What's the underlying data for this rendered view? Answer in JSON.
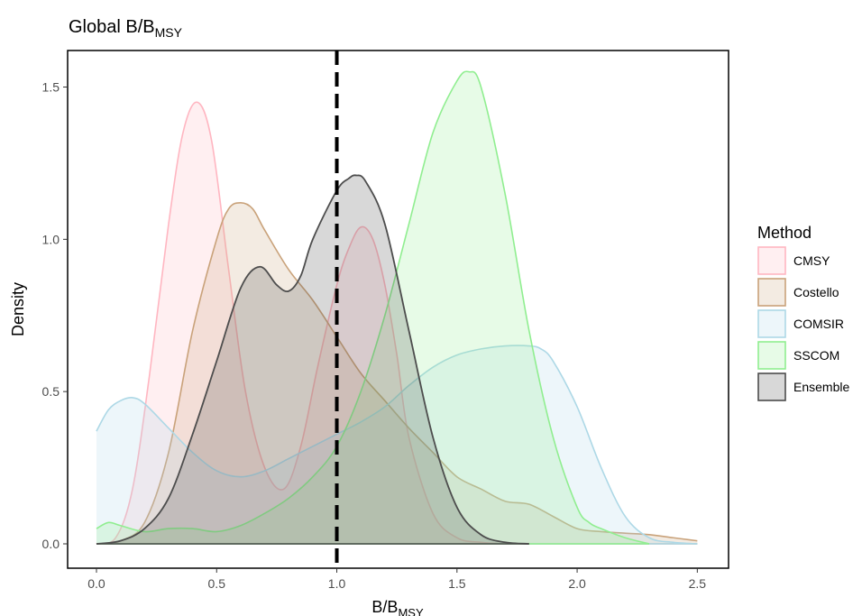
{
  "chart_data": {
    "type": "area",
    "title": {
      "main": "Global B",
      "slash": "/",
      "base": "B",
      "sub": "MSY"
    },
    "xlabel": {
      "base": "B",
      "slash": "/",
      "base2": "B",
      "sub": "MSY"
    },
    "ylabel": "Density",
    "xlim": [
      -0.12,
      2.63
    ],
    "ylim": [
      -0.08,
      1.62
    ],
    "x_ticks": [
      "0.0",
      "0.5",
      "1.0",
      "1.5",
      "2.0",
      "2.5"
    ],
    "y_ticks": [
      "0.0",
      "0.5",
      "1.0",
      "1.5"
    ],
    "reference_line": {
      "x": 1.0,
      "style": "dashed"
    },
    "grid": false,
    "legend": {
      "title": "Method",
      "position": "right"
    },
    "series": [
      {
        "name": "CMSY",
        "color": "#ffb6c1",
        "x": [
          0.0,
          0.08,
          0.15,
          0.22,
          0.3,
          0.36,
          0.42,
          0.48,
          0.55,
          0.62,
          0.7,
          0.78,
          0.85,
          0.92,
          1.0,
          1.05,
          1.1,
          1.15,
          1.2,
          1.25,
          1.3,
          1.4,
          1.5,
          1.6,
          1.7,
          1.8
        ],
        "values": [
          0.0,
          0.02,
          0.18,
          0.55,
          1.05,
          1.35,
          1.45,
          1.32,
          0.9,
          0.5,
          0.25,
          0.18,
          0.32,
          0.58,
          0.85,
          0.97,
          1.04,
          1.0,
          0.85,
          0.62,
          0.35,
          0.1,
          0.02,
          0.005,
          0.0,
          0.0
        ]
      },
      {
        "name": "Costello",
        "color": "#c9a27a",
        "x": [
          0.0,
          0.1,
          0.2,
          0.3,
          0.4,
          0.5,
          0.55,
          0.6,
          0.65,
          0.7,
          0.8,
          0.9,
          1.0,
          1.1,
          1.2,
          1.3,
          1.4,
          1.5,
          1.6,
          1.7,
          1.8,
          1.9,
          2.0,
          2.1,
          2.2,
          2.3,
          2.4,
          2.5
        ],
        "values": [
          0.0,
          0.01,
          0.07,
          0.3,
          0.7,
          1.0,
          1.1,
          1.12,
          1.1,
          1.03,
          0.9,
          0.8,
          0.68,
          0.56,
          0.47,
          0.38,
          0.3,
          0.22,
          0.18,
          0.14,
          0.13,
          0.09,
          0.05,
          0.04,
          0.035,
          0.03,
          0.02,
          0.01
        ]
      },
      {
        "name": "COMSIR",
        "color": "#add8e6",
        "x": [
          0.0,
          0.05,
          0.1,
          0.15,
          0.2,
          0.3,
          0.4,
          0.5,
          0.6,
          0.7,
          0.8,
          0.9,
          1.0,
          1.1,
          1.2,
          1.3,
          1.4,
          1.5,
          1.6,
          1.7,
          1.8,
          1.85,
          1.9,
          2.0,
          2.1,
          2.2,
          2.3,
          2.4,
          2.5
        ],
        "values": [
          0.37,
          0.44,
          0.47,
          0.48,
          0.46,
          0.38,
          0.3,
          0.24,
          0.22,
          0.24,
          0.28,
          0.32,
          0.36,
          0.4,
          0.45,
          0.52,
          0.58,
          0.62,
          0.64,
          0.65,
          0.65,
          0.64,
          0.6,
          0.45,
          0.25,
          0.09,
          0.02,
          0.005,
          0.0
        ]
      },
      {
        "name": "SSCOM",
        "color": "#90ee90",
        "x": [
          0.0,
          0.05,
          0.1,
          0.2,
          0.3,
          0.4,
          0.5,
          0.6,
          0.7,
          0.8,
          0.9,
          1.0,
          1.1,
          1.2,
          1.3,
          1.4,
          1.5,
          1.55,
          1.6,
          1.7,
          1.8,
          1.9,
          2.0,
          2.05,
          2.1,
          2.2,
          2.3
        ],
        "values": [
          0.05,
          0.07,
          0.06,
          0.04,
          0.05,
          0.05,
          0.04,
          0.06,
          0.1,
          0.15,
          0.22,
          0.32,
          0.5,
          0.75,
          1.05,
          1.35,
          1.52,
          1.55,
          1.5,
          1.15,
          0.7,
          0.35,
          0.12,
          0.07,
          0.05,
          0.02,
          0.0
        ]
      },
      {
        "name": "Ensemble",
        "color": "#4d4d4d",
        "x": [
          0.0,
          0.1,
          0.2,
          0.3,
          0.4,
          0.5,
          0.6,
          0.68,
          0.75,
          0.8,
          0.85,
          0.9,
          1.0,
          1.05,
          1.08,
          1.12,
          1.2,
          1.3,
          1.4,
          1.5,
          1.6,
          1.7,
          1.8
        ],
        "values": [
          0.0,
          0.01,
          0.05,
          0.15,
          0.36,
          0.6,
          0.84,
          0.91,
          0.85,
          0.83,
          0.88,
          1.0,
          1.16,
          1.2,
          1.21,
          1.19,
          1.05,
          0.7,
          0.35,
          0.12,
          0.03,
          0.005,
          0.0
        ]
      }
    ]
  }
}
